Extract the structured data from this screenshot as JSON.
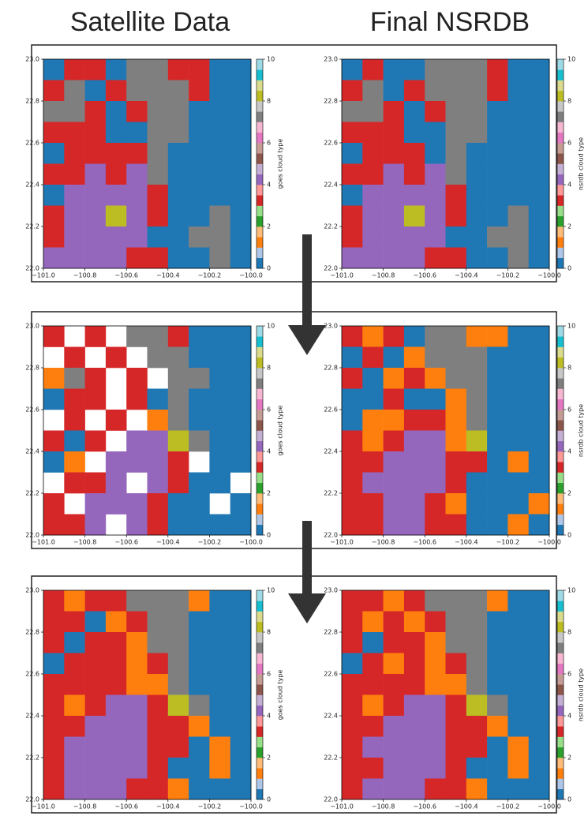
{
  "headers": [
    "Satellite Data",
    "Final NSRDB"
  ],
  "colormap": [
    "#1f77b4",
    "#aec7e8",
    "#ff7f0e",
    "#ffbb78",
    "#2ca02c",
    "#98df8a",
    "#d62728",
    "#ff9896",
    "#9467bd",
    "#c5b0d5",
    "#8c564b",
    "#c49c94",
    "#e377c2",
    "#f7b6d2",
    "#7f7f7f",
    "#c7c7c7",
    "#bcbd22",
    "#dbdb8d",
    "#17becf",
    "#9edae5"
  ],
  "chart_data": [
    {
      "type": "heatmap",
      "xlim": [
        -101,
        -100
      ],
      "ylim": [
        22,
        23
      ],
      "xticks": [
        {
          "value": -101,
          "label": "−101.0"
        },
        {
          "value": -100.8,
          "label": "−100.8"
        },
        {
          "value": -100.6,
          "label": "−100.6"
        },
        {
          "value": -100.4,
          "label": "−100.4"
        },
        {
          "value": -100.2,
          "label": "−100.2"
        },
        {
          "value": -100,
          "label": "−100.0"
        }
      ],
      "yticks": [
        {
          "value": 22,
          "label": "22.0"
        },
        22.2,
        22.4,
        22.6,
        22.8,
        {
          "value": 23,
          "label": "23.0"
        }
      ],
      "colorbar": {
        "label": "goes cloud type",
        "clim": [
          0,
          10
        ],
        "ticks": [
          0,
          2,
          4,
          6,
          8,
          10
        ]
      },
      "values": [
        [
          0,
          3,
          3,
          0,
          7,
          7,
          3,
          3,
          0,
          0
        ],
        [
          3,
          7,
          0,
          3,
          7,
          7,
          7,
          3,
          0,
          0
        ],
        [
          7,
          7,
          3,
          0,
          3,
          7,
          7,
          0,
          0,
          0
        ],
        [
          3,
          3,
          3,
          0,
          0,
          7,
          7,
          0,
          0,
          0
        ],
        [
          0,
          3,
          3,
          3,
          3,
          7,
          0,
          0,
          0,
          0
        ],
        [
          3,
          3,
          4,
          3,
          4,
          7,
          0,
          0,
          0,
          0
        ],
        [
          0,
          4,
          4,
          4,
          4,
          3,
          0,
          0,
          0,
          0
        ],
        [
          3,
          4,
          4,
          8,
          4,
          3,
          0,
          0,
          7,
          0
        ],
        [
          3,
          4,
          4,
          4,
          4,
          0,
          0,
          7,
          7,
          0
        ],
        [
          4,
          4,
          4,
          4,
          3,
          3,
          0,
          0,
          7,
          0
        ]
      ]
    },
    {
      "type": "heatmap",
      "xlim": [
        -101,
        -100
      ],
      "ylim": [
        22,
        23
      ],
      "xticks": [
        {
          "value": -101,
          "label": "−101.0"
        },
        {
          "value": -100.8,
          "label": "−100.8"
        },
        {
          "value": -100.6,
          "label": "−100.6"
        },
        {
          "value": -100.4,
          "label": "−100.4"
        },
        {
          "value": -100.2,
          "label": "−100.2"
        },
        {
          "value": -100,
          "label": "−100.0"
        }
      ],
      "yticks": [
        {
          "value": 22,
          "label": "22.0"
        },
        22.2,
        22.4,
        22.6,
        22.8,
        {
          "value": 23,
          "label": "23.0"
        }
      ],
      "colorbar": {
        "label": "nsrdb cloud type",
        "clim": [
          0,
          10
        ],
        "ticks": [
          0,
          2,
          4,
          6,
          8,
          10
        ]
      },
      "values": [
        [
          0,
          3,
          0,
          0,
          7,
          7,
          7,
          3,
          0,
          0
        ],
        [
          3,
          7,
          0,
          3,
          7,
          7,
          7,
          3,
          0,
          0
        ],
        [
          7,
          7,
          3,
          0,
          3,
          7,
          7,
          0,
          0,
          0
        ],
        [
          3,
          3,
          3,
          0,
          0,
          7,
          7,
          0,
          0,
          0
        ],
        [
          0,
          3,
          3,
          3,
          0,
          7,
          0,
          0,
          0,
          0
        ],
        [
          3,
          3,
          4,
          3,
          4,
          7,
          0,
          0,
          0,
          0
        ],
        [
          0,
          4,
          4,
          4,
          4,
          3,
          0,
          0,
          0,
          0
        ],
        [
          3,
          4,
          4,
          8,
          4,
          3,
          0,
          0,
          7,
          0
        ],
        [
          3,
          4,
          4,
          4,
          4,
          0,
          0,
          7,
          7,
          0
        ],
        [
          4,
          4,
          4,
          4,
          3,
          3,
          0,
          0,
          7,
          0
        ]
      ]
    },
    {
      "type": "heatmap",
      "xlim": [
        -101,
        -100
      ],
      "ylim": [
        22,
        23
      ],
      "xticks": [
        {
          "value": -101,
          "label": "−101.0"
        },
        {
          "value": -100.8,
          "label": "−100.8"
        },
        {
          "value": -100.6,
          "label": "−100.6"
        },
        {
          "value": -100.4,
          "label": "−100.4"
        },
        {
          "value": -100.2,
          "label": "−100.2"
        },
        {
          "value": -100,
          "label": "−100.0"
        }
      ],
      "yticks": [
        {
          "value": 22,
          "label": "22.0"
        },
        22.2,
        22.4,
        22.6,
        22.8,
        {
          "value": 23,
          "label": "23.0"
        }
      ],
      "colorbar": {
        "label": "goes cloud type",
        "clim": [
          0,
          10
        ],
        "ticks": [
          0,
          2,
          4,
          6,
          8,
          10
        ]
      },
      "values": [
        [
          3,
          null,
          3,
          null,
          7,
          7,
          3,
          0,
          0,
          0
        ],
        [
          null,
          3,
          null,
          3,
          null,
          7,
          7,
          0,
          0,
          0
        ],
        [
          1,
          7,
          3,
          null,
          3,
          null,
          7,
          7,
          0,
          0
        ],
        [
          0,
          3,
          3,
          null,
          3,
          0,
          7,
          0,
          0,
          0
        ],
        [
          null,
          3,
          null,
          3,
          null,
          1,
          7,
          0,
          0,
          0
        ],
        [
          3,
          0,
          3,
          null,
          4,
          4,
          8,
          7,
          0,
          0
        ],
        [
          0,
          1,
          null,
          4,
          4,
          4,
          3,
          null,
          0,
          0
        ],
        [
          null,
          3,
          3,
          4,
          null,
          4,
          3,
          0,
          0,
          null
        ],
        [
          3,
          null,
          4,
          4,
          4,
          3,
          0,
          0,
          null,
          0
        ],
        [
          3,
          3,
          4,
          null,
          4,
          3,
          0,
          0,
          0,
          0
        ]
      ]
    },
    {
      "type": "heatmap",
      "xlim": [
        -101,
        -100
      ],
      "ylim": [
        22,
        23
      ],
      "xticks": [
        {
          "value": -101,
          "label": "−101.0"
        },
        {
          "value": -100.8,
          "label": "−100.8"
        },
        {
          "value": -100.6,
          "label": "−100.6"
        },
        {
          "value": -100.4,
          "label": "−100.4"
        },
        {
          "value": -100.2,
          "label": "−100.2"
        },
        {
          "value": -100,
          "label": "−100.0"
        }
      ],
      "yticks": [
        {
          "value": 22,
          "label": "22.0"
        },
        22.2,
        22.4,
        22.6,
        22.8,
        {
          "value": 23,
          "label": "23.0"
        }
      ],
      "colorbar": {
        "label": "nsrdb cloud type",
        "clim": [
          0,
          10
        ],
        "ticks": [
          0,
          2,
          4,
          6,
          8,
          10
        ]
      },
      "values": [
        [
          3,
          1,
          3,
          0,
          7,
          7,
          1,
          1,
          0,
          0
        ],
        [
          0,
          3,
          0,
          1,
          7,
          7,
          7,
          0,
          0,
          0
        ],
        [
          3,
          0,
          1,
          3,
          1,
          7,
          7,
          0,
          0,
          0
        ],
        [
          0,
          0,
          3,
          0,
          0,
          1,
          7,
          0,
          0,
          0
        ],
        [
          0,
          1,
          1,
          3,
          3,
          1,
          7,
          0,
          0,
          0
        ],
        [
          3,
          1,
          3,
          4,
          4,
          1,
          8,
          0,
          0,
          0
        ],
        [
          3,
          3,
          4,
          4,
          4,
          3,
          3,
          0,
          1,
          0
        ],
        [
          3,
          4,
          4,
          4,
          4,
          3,
          0,
          0,
          0,
          0
        ],
        [
          3,
          3,
          4,
          4,
          3,
          1,
          0,
          0,
          0,
          1
        ],
        [
          3,
          3,
          4,
          4,
          3,
          3,
          0,
          0,
          1,
          0
        ]
      ]
    },
    {
      "type": "heatmap",
      "xlim": [
        -101,
        -100
      ],
      "ylim": [
        22,
        23
      ],
      "xticks": [
        {
          "value": -101,
          "label": "−101.0"
        },
        {
          "value": -100.8,
          "label": "−100.8"
        },
        {
          "value": -100.6,
          "label": "−100.6"
        },
        {
          "value": -100.4,
          "label": "−100.4"
        },
        {
          "value": -100.2,
          "label": "−100.2"
        },
        {
          "value": -100,
          "label": "−100.0"
        }
      ],
      "yticks": [
        {
          "value": 22,
          "label": "22.0"
        },
        22.2,
        22.4,
        22.6,
        22.8,
        {
          "value": 23,
          "label": "23.0"
        }
      ],
      "colorbar": {
        "label": "goes cloud type",
        "clim": [
          0,
          10
        ],
        "ticks": [
          0,
          2,
          4,
          6,
          8,
          10
        ]
      },
      "values": [
        [
          3,
          1,
          3,
          3,
          7,
          7,
          7,
          1,
          0,
          0
        ],
        [
          3,
          3,
          0,
          1,
          3,
          7,
          7,
          0,
          0,
          0
        ],
        [
          3,
          0,
          3,
          3,
          1,
          7,
          7,
          0,
          0,
          0
        ],
        [
          0,
          3,
          3,
          3,
          1,
          3,
          7,
          0,
          0,
          0
        ],
        [
          3,
          3,
          3,
          3,
          1,
          1,
          7,
          0,
          0,
          0
        ],
        [
          3,
          1,
          3,
          4,
          4,
          3,
          8,
          7,
          0,
          0
        ],
        [
          3,
          3,
          4,
          4,
          4,
          3,
          3,
          1,
          0,
          0
        ],
        [
          3,
          4,
          4,
          4,
          4,
          3,
          3,
          0,
          1,
          0
        ],
        [
          3,
          4,
          4,
          4,
          4,
          3,
          0,
          0,
          1,
          0
        ],
        [
          3,
          4,
          4,
          4,
          3,
          3,
          1,
          0,
          0,
          0
        ]
      ]
    },
    {
      "type": "heatmap",
      "xlim": [
        -101,
        -100
      ],
      "ylim": [
        22,
        23
      ],
      "xticks": [
        {
          "value": -101,
          "label": "−101.0"
        },
        {
          "value": -100.8,
          "label": "−100.8"
        },
        {
          "value": -100.6,
          "label": "−100.6"
        },
        {
          "value": -100.4,
          "label": "−100.4"
        },
        {
          "value": -100.2,
          "label": "−100.2"
        },
        {
          "value": -100,
          "label": "−100.0"
        }
      ],
      "yticks": [
        {
          "value": 22,
          "label": "22.0"
        },
        22.2,
        22.4,
        22.6,
        22.8,
        {
          "value": 23,
          "label": "23.0"
        }
      ],
      "colorbar": {
        "label": "nsrdb cloud type",
        "clim": [
          0,
          10
        ],
        "ticks": [
          0,
          2,
          4,
          6,
          8,
          10
        ]
      },
      "values": [
        [
          3,
          3,
          1,
          3,
          7,
          7,
          7,
          1,
          0,
          0
        ],
        [
          3,
          1,
          3,
          1,
          3,
          7,
          7,
          0,
          0,
          0
        ],
        [
          3,
          0,
          3,
          3,
          1,
          7,
          7,
          0,
          0,
          0
        ],
        [
          0,
          3,
          1,
          3,
          1,
          3,
          7,
          0,
          0,
          0
        ],
        [
          3,
          3,
          3,
          3,
          1,
          1,
          7,
          0,
          0,
          0
        ],
        [
          3,
          1,
          3,
          4,
          4,
          3,
          8,
          7,
          0,
          0
        ],
        [
          3,
          3,
          4,
          4,
          4,
          3,
          3,
          1,
          0,
          0
        ],
        [
          3,
          4,
          4,
          4,
          4,
          3,
          3,
          0,
          1,
          0
        ],
        [
          3,
          3,
          4,
          4,
          4,
          3,
          0,
          0,
          1,
          0
        ],
        [
          3,
          4,
          4,
          4,
          3,
          3,
          1,
          0,
          0,
          0
        ]
      ]
    }
  ]
}
